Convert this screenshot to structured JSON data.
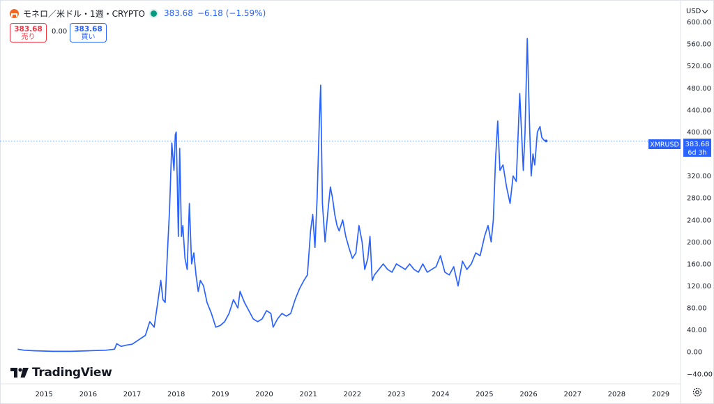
{
  "header": {
    "symbol_title": "モネロ／米ドル・1週・CRYPTO",
    "last_price": "383.68",
    "change": "−6.18",
    "change_pct": "(−1.59%)",
    "status_color": "#089981"
  },
  "trade": {
    "sell_price": "383.68",
    "sell_label": "売り",
    "spread": "0.00",
    "buy_price": "383.68",
    "buy_label": "買い"
  },
  "currency": "USD",
  "price_tag": {
    "label": "XMRUSD",
    "value": "383.68",
    "countdown": "6d 3h"
  },
  "branding": "TradingView",
  "icons": {
    "symbol_logo": "monero-logo-icon",
    "settings": "gear-icon",
    "brand": "tradingview-logo-icon"
  },
  "chart_data": {
    "type": "line",
    "series_color": "#2962ff",
    "y_ticks": [
      600,
      560,
      520,
      480,
      440,
      400,
      360,
      320,
      280,
      240,
      200,
      160,
      120,
      80,
      40,
      0,
      -40
    ],
    "y_tick_labels": [
      "600.00",
      "560.00",
      "520.00",
      "480.00",
      "440.00",
      "400.00",
      "360.00",
      "320.00",
      "280.00",
      "240.00",
      "200.00",
      "160.00",
      "120.00",
      "80.00",
      "40.00",
      "0.00",
      "−40.00"
    ],
    "ylim": [
      -58,
      640
    ],
    "x_ticks": [
      2015,
      2016,
      2017,
      2018,
      2019,
      2020,
      2021,
      2022,
      2023,
      2024,
      2025,
      2026,
      2027,
      2028,
      2029
    ],
    "xlim": [
      2014.0,
      2029.45
    ],
    "last_value": 383.68,
    "x": [
      2014.4,
      2014.55,
      2014.8,
      2015.2,
      2015.6,
      2016.0,
      2016.4,
      2016.6,
      2016.65,
      2016.75,
      2016.85,
      2017.0,
      2017.15,
      2017.3,
      2017.4,
      2017.5,
      2017.58,
      2017.65,
      2017.7,
      2017.75,
      2017.8,
      2017.85,
      2017.9,
      2017.95,
      2017.98,
      2018.0,
      2018.02,
      2018.05,
      2018.08,
      2018.12,
      2018.15,
      2018.2,
      2018.25,
      2018.3,
      2018.35,
      2018.4,
      2018.45,
      2018.5,
      2018.55,
      2018.62,
      2018.7,
      2018.8,
      2018.9,
      2019.0,
      2019.1,
      2019.2,
      2019.3,
      2019.4,
      2019.45,
      2019.55,
      2019.65,
      2019.75,
      2019.85,
      2019.95,
      2020.05,
      2020.15,
      2020.2,
      2020.3,
      2020.4,
      2020.5,
      2020.6,
      2020.7,
      2020.8,
      2020.9,
      2020.98,
      2021.05,
      2021.1,
      2021.15,
      2021.2,
      2021.25,
      2021.28,
      2021.32,
      2021.38,
      2021.45,
      2021.5,
      2021.55,
      2021.6,
      2021.65,
      2021.7,
      2021.78,
      2021.85,
      2021.92,
      2022.0,
      2022.08,
      2022.15,
      2022.22,
      2022.28,
      2022.35,
      2022.4,
      2022.45,
      2022.5,
      2022.6,
      2022.7,
      2022.8,
      2022.9,
      2023.0,
      2023.1,
      2023.2,
      2023.3,
      2023.4,
      2023.5,
      2023.6,
      2023.7,
      2023.8,
      2023.9,
      2024.0,
      2024.1,
      2024.2,
      2024.3,
      2024.4,
      2024.5,
      2024.6,
      2024.7,
      2024.8,
      2024.9,
      2025.0,
      2025.08,
      2025.15,
      2025.2,
      2025.25,
      2025.3,
      2025.35,
      2025.42,
      2025.5,
      2025.58,
      2025.65,
      2025.72,
      2025.8,
      2025.88,
      2025.92,
      2025.97,
      2026.02,
      2026.06,
      2026.1,
      2026.14,
      2026.2,
      2026.26,
      2026.3,
      2026.35,
      2026.4
    ],
    "y": [
      5,
      3,
      2,
      1,
      1,
      2,
      3,
      5,
      15,
      10,
      12,
      14,
      22,
      30,
      55,
      45,
      90,
      130,
      95,
      90,
      180,
      260,
      380,
      330,
      395,
      400,
      330,
      210,
      370,
      210,
      230,
      170,
      150,
      270,
      160,
      180,
      140,
      110,
      130,
      120,
      90,
      70,
      45,
      48,
      55,
      70,
      95,
      80,
      110,
      90,
      75,
      60,
      55,
      60,
      75,
      70,
      45,
      60,
      70,
      65,
      70,
      95,
      115,
      130,
      140,
      220,
      250,
      190,
      280,
      420,
      485,
      270,
      200,
      260,
      300,
      280,
      250,
      230,
      220,
      240,
      210,
      190,
      170,
      180,
      230,
      200,
      150,
      170,
      210,
      130,
      140,
      150,
      160,
      150,
      145,
      160,
      155,
      150,
      160,
      150,
      145,
      160,
      145,
      150,
      155,
      175,
      145,
      140,
      155,
      120,
      165,
      150,
      160,
      180,
      175,
      210,
      230,
      200,
      240,
      350,
      420,
      330,
      340,
      300,
      270,
      320,
      310,
      470,
      330,
      400,
      570,
      420,
      320,
      360,
      340,
      400,
      410,
      390,
      385,
      383.68
    ]
  }
}
